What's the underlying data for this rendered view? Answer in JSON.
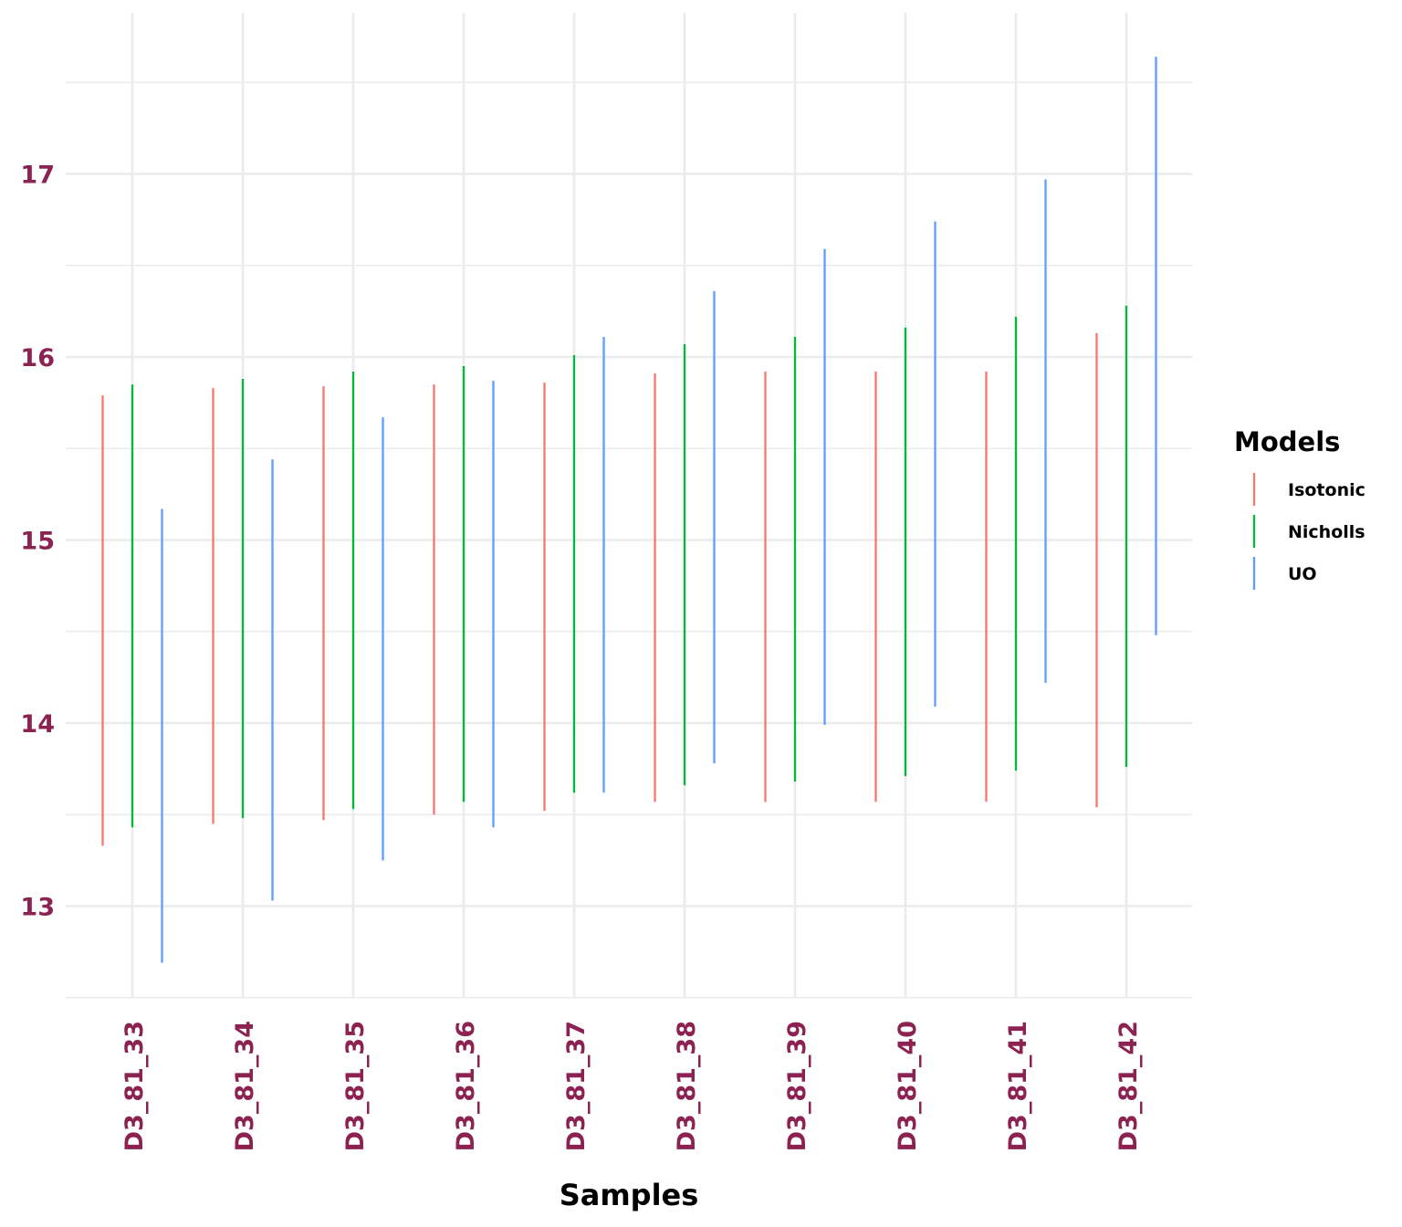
{
  "chart_data": {
    "type": "errorbar",
    "xlabel": "Samples",
    "ylabel": "",
    "ylim": [
      12.5,
      17.5
    ],
    "yticks": [
      13,
      14,
      15,
      16,
      17
    ],
    "grid": true,
    "legend": {
      "title": "Models",
      "position": "right"
    },
    "categories": [
      "D3_81_33",
      "D3_81_34",
      "D3_81_35",
      "D3_81_36",
      "D3_81_37",
      "D3_81_38",
      "D3_81_39",
      "D3_81_40",
      "D3_81_41",
      "D3_81_42"
    ],
    "series": [
      {
        "name": "Isotonic",
        "color": "#F8766D",
        "low": [
          13.33,
          13.45,
          13.47,
          13.5,
          13.52,
          13.57,
          13.57,
          13.57,
          13.57,
          13.54
        ],
        "high": [
          15.79,
          15.83,
          15.84,
          15.85,
          15.86,
          15.91,
          15.92,
          15.92,
          15.92,
          16.13
        ]
      },
      {
        "name": "Nicholls",
        "color": "#00BA38",
        "low": [
          13.43,
          13.48,
          13.53,
          13.57,
          13.62,
          13.66,
          13.68,
          13.71,
          13.74,
          13.76
        ],
        "high": [
          15.85,
          15.88,
          15.92,
          15.95,
          16.01,
          16.07,
          16.11,
          16.16,
          16.22,
          16.28
        ]
      },
      {
        "name": "UO",
        "color": "#619CFF",
        "low": [
          12.69,
          13.03,
          13.25,
          13.43,
          13.62,
          13.78,
          13.99,
          14.09,
          14.22,
          14.48
        ],
        "high": [
          15.17,
          15.44,
          15.67,
          15.87,
          16.11,
          16.36,
          16.59,
          16.74,
          16.97,
          17.64
        ]
      }
    ]
  },
  "colors": {
    "tick_label": "#8B2252",
    "grid": "#EBEBEB"
  }
}
